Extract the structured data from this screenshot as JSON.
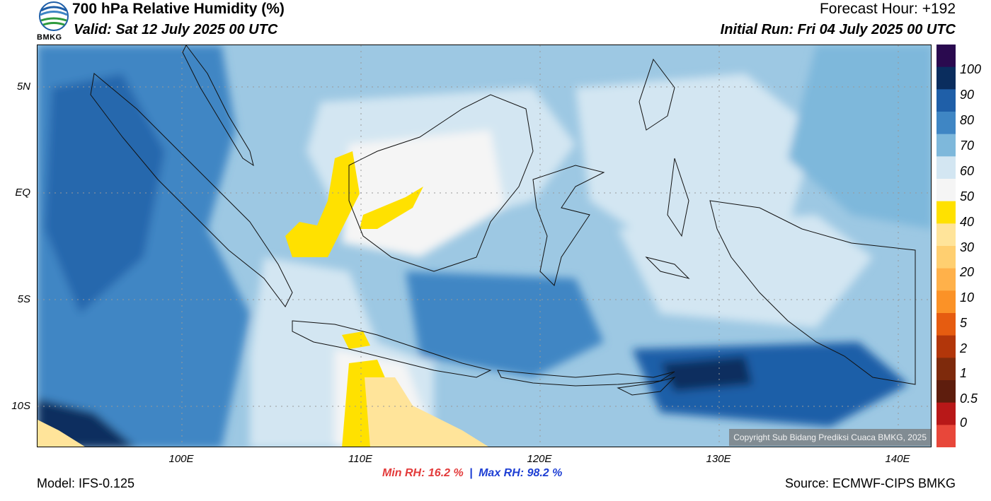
{
  "header": {
    "title": "700 hPa Relative Humidity (%)",
    "valid": "Valid: Sat 12 July 2025 00 UTC",
    "forecast_hour": "Forecast Hour: +192",
    "initial_run": "Initial Run: Fri 04 July 2025 00 UTC",
    "logo_text": "BMKG"
  },
  "map": {
    "lat_labels": [
      "5N",
      "EQ",
      "5S",
      "10S"
    ],
    "lon_labels": [
      "100E",
      "110E",
      "120E",
      "130E",
      "140E"
    ],
    "copyright": "Copyright Sub Bidang Prediksi Cuaca BMKG, 2025"
  },
  "colorbar": {
    "labels": [
      "100",
      "90",
      "80",
      "70",
      "60",
      "50",
      "40",
      "30",
      "20",
      "10",
      "5",
      "2",
      "1",
      "0.5",
      "0"
    ],
    "colors": [
      "#2a0a4f",
      "#0a2d5e",
      "#1f5fa8",
      "#3f86c4",
      "#7eb8db",
      "#d3e6f2",
      "#f5f5f5",
      "#ffe100",
      "#ffe49a",
      "#ffcf70",
      "#ffb14a",
      "#fb9227",
      "#e65c10",
      "#b2360a",
      "#7e2a0c",
      "#5e1d0d",
      "#b81818",
      "#e8473a"
    ]
  },
  "stats": {
    "min_label": "Min RH:",
    "min_value": "16.2 %",
    "separator": "|",
    "max_label": "Max RH:",
    "max_value": "98.2 %"
  },
  "footer": {
    "model": "Model: IFS-0.125",
    "source": "Source: ECMWF-CIPS BMKG"
  }
}
